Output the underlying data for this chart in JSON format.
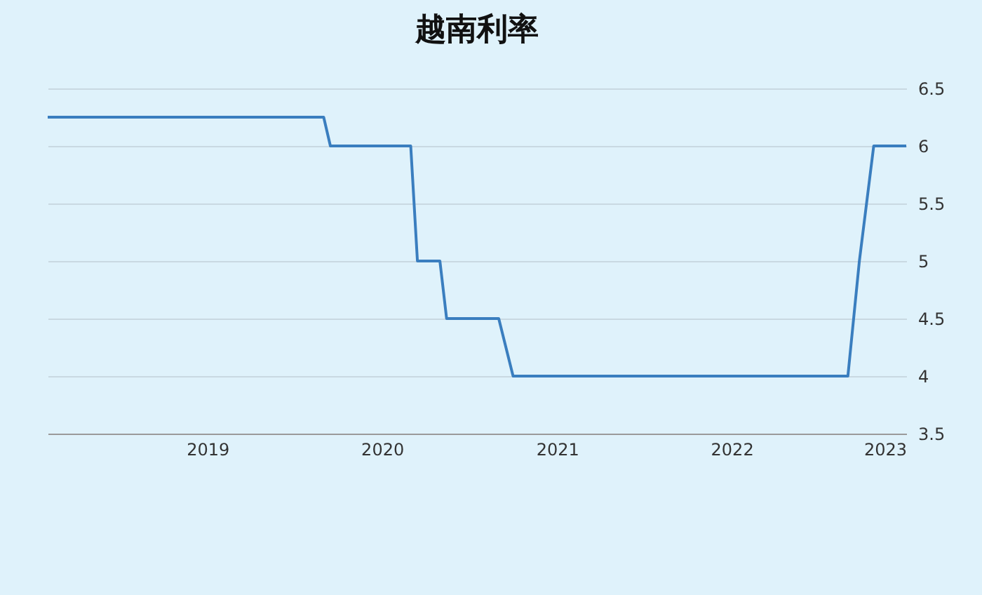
{
  "chart_data": {
    "type": "line",
    "title": "越南利率",
    "x": [
      "2018-02-01",
      "2019-09-01",
      "2019-09-15",
      "2020-03-01",
      "2020-03-15",
      "2020-05-01",
      "2020-05-15",
      "2020-09-01",
      "2020-10-01",
      "2022-09-01",
      "2022-09-25",
      "2022-10-25",
      "2023-01-01"
    ],
    "series": [
      {
        "color": "#3a7ebf",
        "values": [
          6.25,
          6.25,
          6,
          6,
          5,
          5,
          4.5,
          4.5,
          4,
          4,
          5,
          6,
          6
        ]
      }
    ],
    "xlim": [
      "2018-02-01",
      "2023-01-01"
    ],
    "xticks": [
      "2019",
      "2020",
      "2021",
      "2022",
      "2023"
    ],
    "ylim": [
      3.5,
      6.5
    ],
    "yticks": [
      3.5,
      4,
      4.5,
      5,
      5.5,
      6,
      6.5
    ],
    "grid": "y",
    "marker": "none",
    "line_style": "solid"
  }
}
